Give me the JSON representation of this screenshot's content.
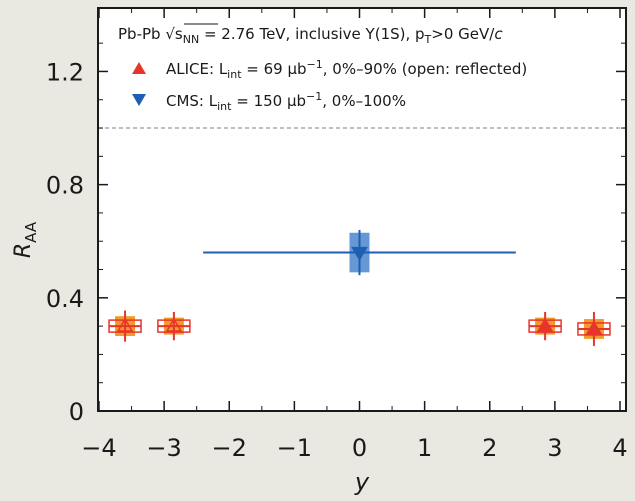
{
  "chart_data": {
    "type": "scatter",
    "title": "",
    "xlabel": "y",
    "ylabel": "R",
    "ylabel_sub": "AA",
    "xlim": [
      -4,
      4
    ],
    "ylim": [
      0,
      1.4
    ],
    "x_ticks": [
      -4,
      -3,
      -2,
      -1,
      0,
      1,
      2,
      3,
      4
    ],
    "y_ticks": [
      0,
      0.4,
      0.8,
      1.2
    ],
    "x_tick_labels": [
      "−4",
      "−3",
      "−2",
      "−1",
      "0",
      "1",
      "2",
      "3",
      "4"
    ],
    "y_tick_labels": [
      "0",
      "0.4",
      "0.8",
      "1.2"
    ],
    "reference_line": {
      "y": 1.0,
      "style": "dashed"
    },
    "annotation": {
      "prefix": "Pb-Pb ",
      "sqrt_sym": "√",
      "s": "s",
      "s_sub": "NN",
      "rest": " = 2.76 TeV, inclusive Υ(1S), p",
      "pt_sub": "T",
      "tail": ">0 GeV/",
      "c": "c"
    },
    "legend_position": "top-left",
    "series": [
      {
        "key": "alice",
        "marker": "triangle-up",
        "color": "#e8352b",
        "sys_color": "#f39a2b",
        "legend": {
          "pre": "ALICE: L",
          "sub": "int",
          "mid": " = 69 μb",
          "sup": "−1",
          "post": ", 0%–90% (open: reflected)"
        },
        "points": [
          {
            "x": -3.6,
            "y": 0.3,
            "xerr": 0.25,
            "yerr": 0.055,
            "sys_y": 0.035,
            "open": true
          },
          {
            "x": -2.85,
            "y": 0.3,
            "xerr": 0.25,
            "yerr": 0.05,
            "sys_y": 0.03,
            "open": true
          },
          {
            "x": 2.85,
            "y": 0.3,
            "xerr": 0.25,
            "yerr": 0.05,
            "sys_y": 0.03,
            "open": false
          },
          {
            "x": 3.6,
            "y": 0.29,
            "xerr": 0.25,
            "yerr": 0.06,
            "sys_y": 0.035,
            "open": false
          }
        ]
      },
      {
        "key": "cms",
        "marker": "triangle-down",
        "color": "#1d5fb0",
        "sys_color": "#4a86cc",
        "legend": {
          "pre": "CMS: L",
          "sub": "int",
          "mid": " = 150 μb",
          "sup": "−1",
          "post": ", 0%–100%"
        },
        "points": [
          {
            "x": 0.0,
            "y": 0.56,
            "xerr": 2.4,
            "yerr": 0.08,
            "sys_y": 0.07,
            "open": false
          }
        ]
      }
    ]
  }
}
